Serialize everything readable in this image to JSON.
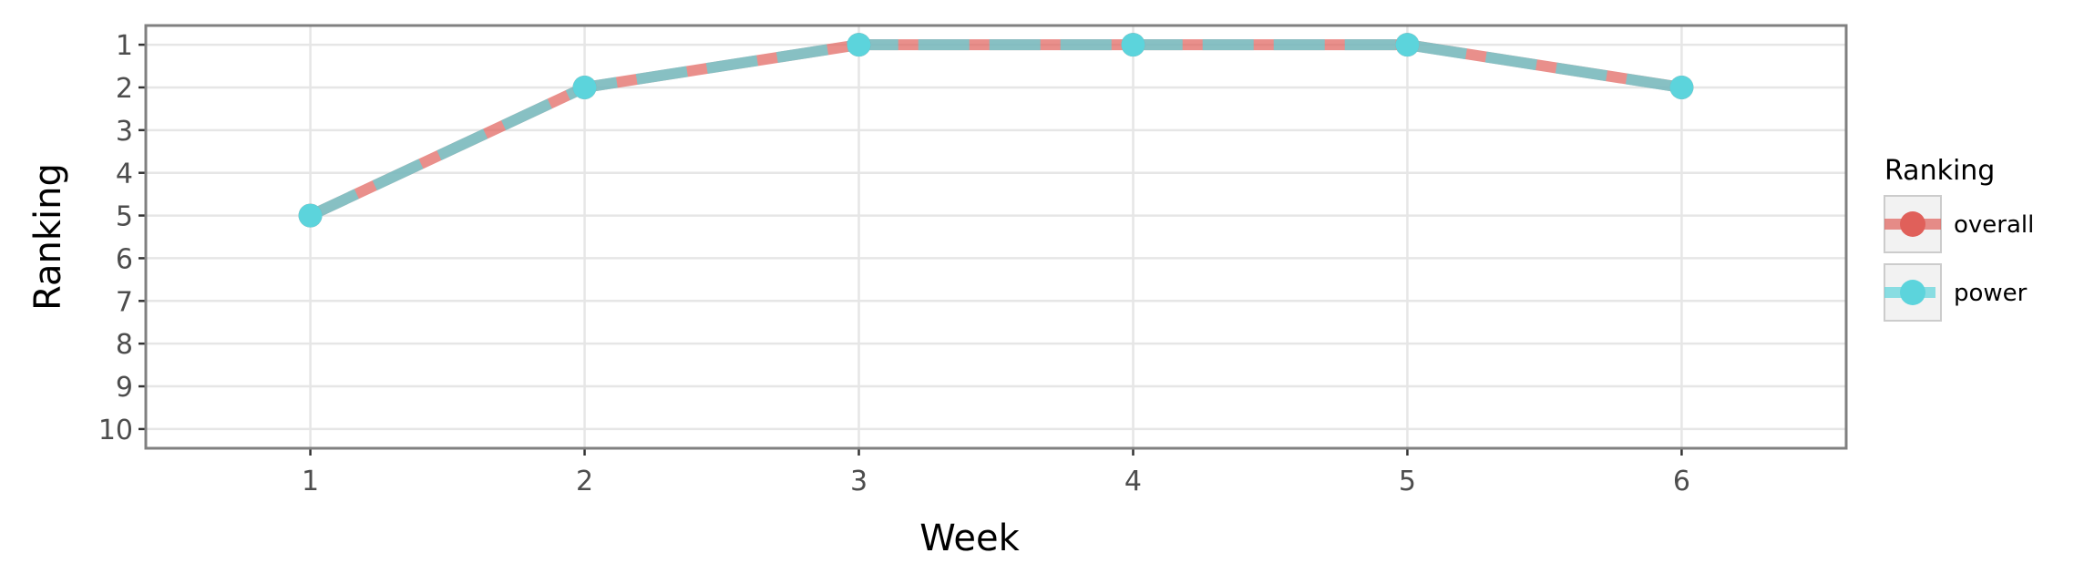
{
  "chart_data": {
    "type": "line",
    "title": "",
    "xlabel": "Week",
    "ylabel": "Ranking",
    "x": [
      1,
      2,
      3,
      4,
      5,
      6
    ],
    "xlim": [
      0.4,
      6.6
    ],
    "ylim": [
      10.45,
      0.55
    ],
    "y_reversed": true,
    "y_ticks": [
      1,
      2,
      3,
      4,
      5,
      6,
      7,
      8,
      9,
      10
    ],
    "x_ticks": [
      1,
      2,
      3,
      4,
      5,
      6
    ],
    "grid": true,
    "legend": {
      "title": "Ranking",
      "position": "right"
    },
    "series": [
      {
        "name": "overall",
        "values": [
          5,
          2,
          1,
          1,
          1,
          2
        ],
        "color": "#e0605a",
        "line_style": "solid"
      },
      {
        "name": "power",
        "values": [
          5,
          2,
          1,
          1,
          1,
          2
        ],
        "color": "#5cd4dc",
        "line_style": "dashed"
      }
    ]
  }
}
